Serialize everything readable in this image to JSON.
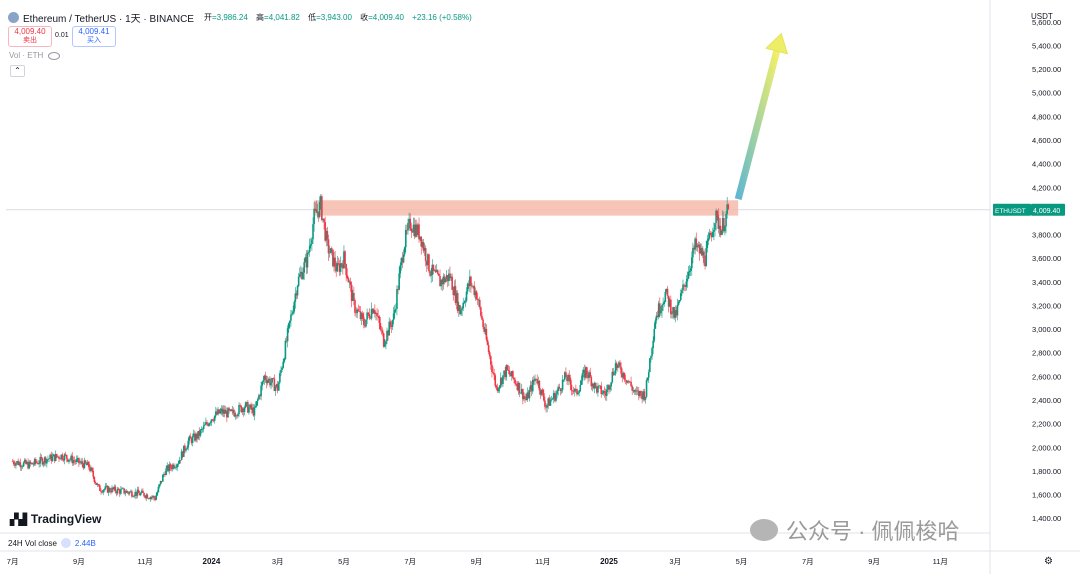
{
  "header": {
    "symbol": "Ethereum / TetherUS · 1天 · BINANCE",
    "open_label": "开",
    "open": "=3,986.24",
    "high_label": "高",
    "high": "=4,041.82",
    "low_label": "低",
    "low": "=3,943.00",
    "close_label": "收",
    "close": "=4,009.40",
    "change": "+23.16 (+0.58%)"
  },
  "trade": {
    "sell_price": "4,009.40",
    "sell_label": "卖出",
    "spread": "0.01",
    "buy_price": "4,009.41",
    "buy_label": "买入"
  },
  "volume_row": {
    "label": "Vol · ETH"
  },
  "currency": "USDT",
  "brand": "TradingView",
  "vol24": {
    "label": "24H Vol close",
    "value": "2.44B"
  },
  "watermark": "公众号 · 佩佩梭哈",
  "colors": {
    "up": "#089981",
    "down": "#f23645",
    "zone": "#f5b7a6",
    "tag": "#089981"
  },
  "chart_data": {
    "type": "candlestick",
    "price_tag": {
      "label": "ETHUSDT",
      "value": "4,009.40",
      "price": 4009.4
    },
    "yaxis": {
      "ticks": [
        1400,
        1600,
        1800,
        2000,
        2200,
        2400,
        2600,
        2800,
        3000,
        3200,
        3400,
        3600,
        3800,
        4000,
        4200,
        4400,
        4600,
        4800,
        5000,
        5200,
        5400,
        5600
      ],
      "tick_labels": [
        "1,400.00",
        "1,600.00",
        "1,800.00",
        "2,000.00",
        "2,200.00",
        "2,400.00",
        "2,600.00",
        "2,800.00",
        "3,000.00",
        "3,200.00",
        "3,400.00",
        "3,600.00",
        "3,800.00",
        "4,000.00",
        "4,200.00",
        "4,400.00",
        "4,600.00",
        "4,800.00",
        "5,000.00",
        "5,200.00",
        "5,400.00",
        "5,600.00"
      ],
      "range": [
        1300,
        5700
      ]
    },
    "xaxis": {
      "ticks": [
        "7月",
        "9月",
        "11月",
        "2024",
        "3月",
        "5月",
        "7月",
        "9月",
        "11月",
        "2025",
        "3月",
        "5月",
        "7月",
        "9月",
        "11月"
      ],
      "tick_months": [
        0,
        2,
        4,
        6,
        8,
        10,
        12,
        14,
        16,
        18,
        20,
        22,
        24,
        26,
        28
      ],
      "start": "2023-06",
      "end": "2025-11",
      "range_months": [
        -0.2,
        29.5
      ]
    },
    "series": [
      {
        "month": 0.0,
        "price": 1880
      },
      {
        "month": 0.5,
        "price": 1850
      },
      {
        "month": 1.0,
        "price": 1900
      },
      {
        "month": 1.5,
        "price": 1930
      },
      {
        "month": 2.0,
        "price": 1870
      },
      {
        "month": 2.3,
        "price": 1840
      },
      {
        "month": 2.6,
        "price": 1650
      },
      {
        "month": 3.0,
        "price": 1640
      },
      {
        "month": 3.5,
        "price": 1620
      },
      {
        "month": 4.0,
        "price": 1600
      },
      {
        "month": 4.3,
        "price": 1570
      },
      {
        "month": 4.6,
        "price": 1800
      },
      {
        "month": 5.0,
        "price": 1880
      },
      {
        "month": 5.3,
        "price": 2050
      },
      {
        "month": 5.6,
        "price": 2100
      },
      {
        "month": 6.0,
        "price": 2250
      },
      {
        "month": 6.3,
        "price": 2300
      },
      {
        "month": 6.6,
        "price": 2280
      },
      {
        "month": 7.0,
        "price": 2350
      },
      {
        "month": 7.3,
        "price": 2300
      },
      {
        "month": 7.6,
        "price": 2600
      },
      {
        "month": 8.0,
        "price": 2500
      },
      {
        "month": 8.3,
        "price": 2950
      },
      {
        "month": 8.6,
        "price": 3400
      },
      {
        "month": 8.9,
        "price": 3600
      },
      {
        "month": 9.1,
        "price": 3950
      },
      {
        "month": 9.3,
        "price": 4050
      },
      {
        "month": 9.5,
        "price": 3700
      },
      {
        "month": 9.8,
        "price": 3500
      },
      {
        "month": 10.0,
        "price": 3600
      },
      {
        "month": 10.3,
        "price": 3200
      },
      {
        "month": 10.6,
        "price": 3050
      },
      {
        "month": 10.9,
        "price": 3200
      },
      {
        "month": 11.2,
        "price": 2900
      },
      {
        "month": 11.5,
        "price": 3100
      },
      {
        "month": 11.8,
        "price": 3700
      },
      {
        "month": 12.0,
        "price": 3900
      },
      {
        "month": 12.3,
        "price": 3800
      },
      {
        "month": 12.6,
        "price": 3500
      },
      {
        "month": 12.9,
        "price": 3400
      },
      {
        "month": 13.2,
        "price": 3450
      },
      {
        "month": 13.5,
        "price": 3150
      },
      {
        "month": 13.8,
        "price": 3400
      },
      {
        "month": 14.0,
        "price": 3300
      },
      {
        "month": 14.3,
        "price": 2900
      },
      {
        "month": 14.6,
        "price": 2500
      },
      {
        "month": 14.9,
        "price": 2650
      },
      {
        "month": 15.2,
        "price": 2550
      },
      {
        "month": 15.5,
        "price": 2400
      },
      {
        "month": 15.8,
        "price": 2600
      },
      {
        "month": 16.1,
        "price": 2350
      },
      {
        "month": 16.4,
        "price": 2450
      },
      {
        "month": 16.7,
        "price": 2600
      },
      {
        "month": 17.0,
        "price": 2450
      },
      {
        "month": 17.3,
        "price": 2650
      },
      {
        "month": 17.6,
        "price": 2500
      },
      {
        "month": 17.9,
        "price": 2450
      },
      {
        "month": 18.2,
        "price": 2700
      },
      {
        "month": 18.5,
        "price": 2600
      },
      {
        "month": 18.8,
        "price": 2450
      },
      {
        "month": 19.1,
        "price": 2450
      },
      {
        "month": 19.4,
        "price": 3100
      },
      {
        "month": 19.7,
        "price": 3300
      },
      {
        "month": 20.0,
        "price": 3100
      },
      {
        "month": 20.3,
        "price": 3400
      },
      {
        "month": 20.6,
        "price": 3700
      },
      {
        "month": 20.9,
        "price": 3600
      },
      {
        "month": 21.2,
        "price": 3950
      },
      {
        "month": 21.4,
        "price": 3850
      },
      {
        "month": 21.6,
        "price": 4009
      }
    ],
    "resistance_zone": {
      "low": 3960,
      "high": 4090,
      "month_from": 9.1,
      "month_to": 21.9
    },
    "arrow": {
      "month_from": 21.9,
      "price_from": 4100,
      "month_to": 23.2,
      "price_to": 5500
    }
  }
}
